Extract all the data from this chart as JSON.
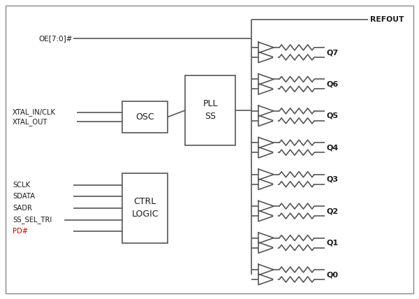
{
  "background_color": "#ffffff",
  "line_color": "#555555",
  "text_color": "#1a1a1a",
  "red_color": "#cc0000",
  "box_color": "#ffffff",
  "figsize": [
    6.0,
    4.28
  ],
  "dpi": 100,
  "output_labels": [
    "Q7",
    "Q6",
    "Q5",
    "Q4",
    "Q3",
    "Q2",
    "Q1",
    "Q0"
  ],
  "refout_label": "REFOUT",
  "osc_label": "OSC",
  "pll_label": "PLL\nSS",
  "ctrl_label": "CTRL\nLOGIC",
  "oe_label": "OE[7:0]#",
  "xtal_in_label": "XTAL_IN/CLK",
  "xtal_out_label": "XTAL_OUT",
  "ctrl_inputs": [
    "SCLK",
    "SDATA",
    "SADR",
    "SS_SEL_TRI",
    "PD#"
  ],
  "pd_color": "#cc0000"
}
